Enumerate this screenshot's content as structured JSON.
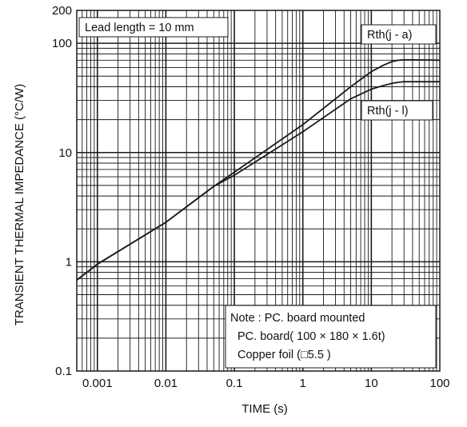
{
  "chart_data": {
    "type": "line",
    "title": "",
    "xlabel": "TIME (s)",
    "ylabel": "TRANSIENT THERMAL IMPEDANCE (°C/W)",
    "xscale": "log",
    "yscale": "log",
    "xlim": [
      0.0005,
      100
    ],
    "ylim": [
      0.1,
      200
    ],
    "grid": true,
    "x_ticks": [
      {
        "value": 0.001,
        "label": "0.001"
      },
      {
        "value": 0.01,
        "label": "0.01"
      },
      {
        "value": 0.1,
        "label": "0.1"
      },
      {
        "value": 1,
        "label": "1"
      },
      {
        "value": 10,
        "label": "10"
      },
      {
        "value": 100,
        "label": "100"
      }
    ],
    "y_ticks": [
      {
        "value": 0.1,
        "label": "0.1"
      },
      {
        "value": 1,
        "label": "1"
      },
      {
        "value": 10,
        "label": "10"
      },
      {
        "value": 100,
        "label": "100"
      },
      {
        "value": 200,
        "label": "200"
      }
    ],
    "series": [
      {
        "name": "Rth(j - a)",
        "x": [
          0.0005,
          0.001,
          0.01,
          0.05,
          0.1,
          1,
          5,
          10,
          15,
          20,
          25,
          30,
          50,
          100
        ],
        "y": [
          0.68,
          0.95,
          2.3,
          4.9,
          6.6,
          18,
          40,
          55,
          63,
          68,
          70,
          70.5,
          70.5,
          70
        ]
      },
      {
        "name": "Rth(j - l)",
        "x": [
          0.0005,
          0.001,
          0.01,
          0.05,
          0.1,
          1,
          5,
          10,
          15,
          20,
          25,
          30,
          50,
          100
        ],
        "y": [
          0.68,
          0.95,
          2.3,
          4.9,
          6.2,
          15.5,
          31,
          38,
          41,
          43,
          44,
          44.5,
          44.5,
          44.5
        ]
      }
    ],
    "legend": [
      {
        "label": "Rth(j - a)",
        "placement": "top-right"
      },
      {
        "label": "Rth(j - l)",
        "placement": "right"
      }
    ],
    "annotations": {
      "lead_length": "Lead length = 10 mm",
      "note_lines": [
        "Note : PC. board mounted",
        "PC. board( 100 × 180 × 1.6t)",
        "Copper foil (□5.5 )"
      ]
    },
    "colors": {
      "line": "#1a1a1a",
      "grid": "#1a1a1a",
      "background": "#ffffff"
    }
  }
}
